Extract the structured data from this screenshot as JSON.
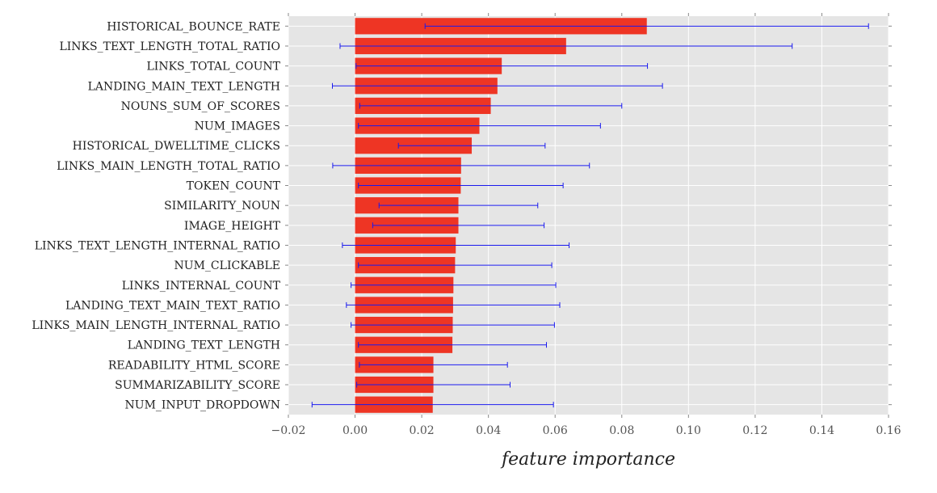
{
  "chart_data": {
    "type": "bar",
    "orientation": "horizontal",
    "title": "",
    "xlabel": "feature importance",
    "ylabel": "",
    "xlim": [
      -0.02,
      0.16
    ],
    "xticks": [
      -0.02,
      0.0,
      0.02,
      0.04,
      0.06,
      0.08,
      0.1,
      0.12,
      0.14,
      0.16
    ],
    "xtick_labels": [
      "−0.02",
      "0.00",
      "0.02",
      "0.04",
      "0.06",
      "0.08",
      "0.10",
      "0.12",
      "0.14",
      "0.16"
    ],
    "grid": true,
    "legend": false,
    "colors": {
      "bar": "#ee3524",
      "error": "#1a1aee",
      "background": "#e5e5e5",
      "grid": "#ffffff"
    },
    "categories": [
      "HISTORICAL_BOUNCE_RATE",
      "LINKS_TEXT_LENGTH_TOTAL_RATIO",
      "LINKS_TOTAL_COUNT",
      "LANDING_MAIN_TEXT_LENGTH",
      "NOUNS_SUM_OF_SCORES",
      "NUM_IMAGES",
      "HISTORICAL_DWELLTIME_CLICKS",
      "LINKS_MAIN_LENGTH_TOTAL_RATIO",
      "TOKEN_COUNT",
      "SIMILARITY_NOUN",
      "IMAGE_HEIGHT",
      "LINKS_TEXT_LENGTH_INTERNAL_RATIO",
      "NUM_CLICKABLE",
      "LINKS_INTERNAL_COUNT",
      "LANDING_TEXT_MAIN_TEXT_RATIO",
      "LINKS_MAIN_LENGTH_INTERNAL_RATIO",
      "LANDING_TEXT_LENGTH",
      "READABILITY_HTML_SCORE",
      "SUMMARIZABILITY_SCORE",
      "NUM_INPUT_DROPDOWN"
    ],
    "values": [
      0.0875,
      0.0633,
      0.044,
      0.0427,
      0.0407,
      0.0373,
      0.035,
      0.0318,
      0.0317,
      0.031,
      0.031,
      0.0302,
      0.03,
      0.0295,
      0.0294,
      0.0293,
      0.0292,
      0.0235,
      0.0235,
      0.0233
    ],
    "errors": [
      0.0665,
      0.0678,
      0.0437,
      0.0495,
      0.0393,
      0.0363,
      0.022,
      0.0385,
      0.0307,
      0.0238,
      0.0257,
      0.034,
      0.029,
      0.0307,
      0.032,
      0.0305,
      0.0282,
      0.0222,
      0.023,
      0.0362
    ]
  }
}
